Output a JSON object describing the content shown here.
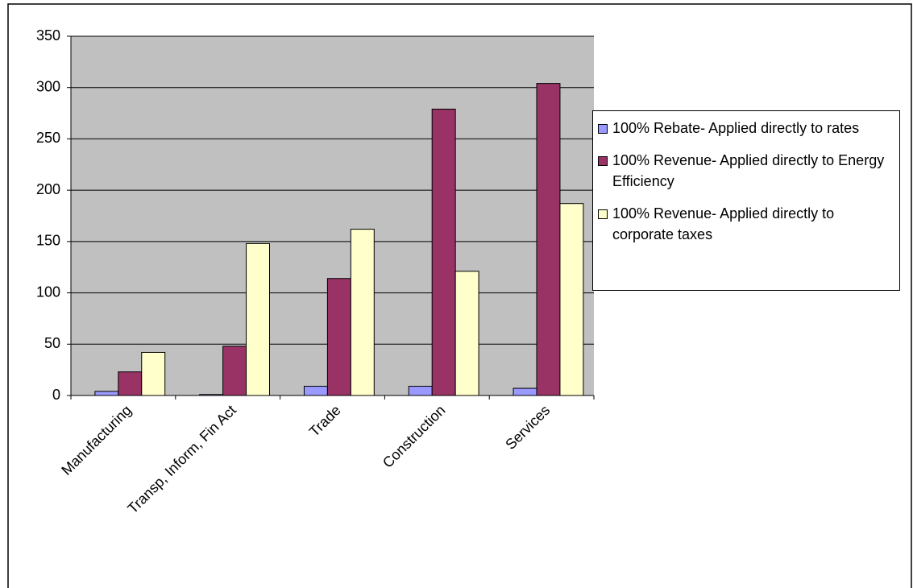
{
  "chart_data": {
    "type": "bar",
    "categories": [
      "Manufacturing",
      "Transp, Inform, Fin Act",
      "Trade",
      "Construction",
      "Services"
    ],
    "series": [
      {
        "name": "100% Rebate- Applied directly to rates",
        "color": "#9999ff",
        "values": [
          4,
          1,
          9,
          9,
          7
        ]
      },
      {
        "name": "100% Revenue- Applied directly to Energy Efficiency",
        "color": "#993366",
        "values": [
          23,
          48,
          114,
          279,
          304
        ]
      },
      {
        "name": "100% Revenue- Applied directly to corporate taxes",
        "color": "#ffffcc",
        "values": [
          42,
          148,
          162,
          121,
          187
        ]
      }
    ],
    "ylim": [
      0,
      350
    ],
    "yticks": [
      0,
      50,
      100,
      150,
      200,
      250,
      300,
      350
    ],
    "grid": true,
    "legend": "right"
  }
}
